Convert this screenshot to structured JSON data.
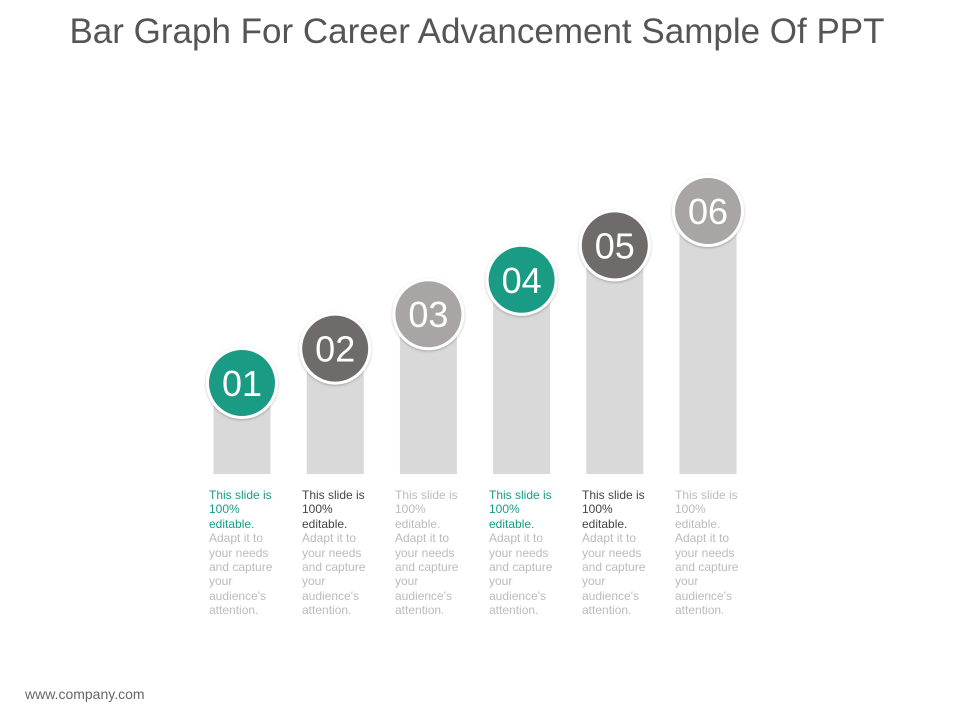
{
  "title": "Bar Graph For Career Advancement Sample Of PPT",
  "footer": "www.company.com",
  "colors": {
    "bar": "#d9d9d9",
    "teal": "#1a9b84",
    "dark_gray": "#6f6b6b",
    "light_gray": "#aaa5a5",
    "caption_muted": "#bbbbbb",
    "caption_dark": "#444444"
  },
  "chart_data": {
    "type": "bar",
    "categories": [
      "01",
      "02",
      "03",
      "04",
      "05",
      "06"
    ],
    "values": [
      1,
      2,
      3,
      4,
      5,
      6
    ],
    "badge_colors": [
      "teal",
      "dark_gray",
      "light_gray",
      "teal",
      "dark_gray",
      "light_gray"
    ]
  },
  "captions": [
    {
      "lead": "This slide is 100% editable.",
      "body": "Adapt it to your needs and capture your audience's attention.",
      "lead_color": "teal"
    },
    {
      "lead": "This slide is 100% editable.",
      "body": "Adapt it to your needs and capture your audience's attention.",
      "lead_color": "caption_dark"
    },
    {
      "lead": "This slide is 100% editable.",
      "body": "Adapt it to your needs and capture your audience's attention.",
      "lead_color": "caption_muted"
    },
    {
      "lead": "This slide is 100% editable.",
      "body": "Adapt it to your needs and capture your audience's attention.",
      "lead_color": "teal"
    },
    {
      "lead": "This slide is 100% editable.",
      "body": "Adapt it to your needs and capture your audience's attention.",
      "lead_color": "caption_dark"
    },
    {
      "lead": "This slide is 100% editable.",
      "body": "Adapt it to your needs and capture your audience's attention.",
      "lead_color": "caption_muted"
    }
  ]
}
